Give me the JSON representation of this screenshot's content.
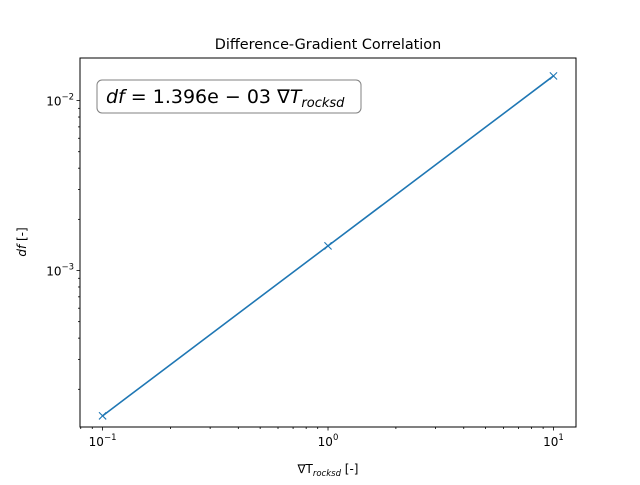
{
  "chart_data": {
    "type": "line",
    "title": "Difference-Gradient Correlation",
    "xlabel": {
      "symbol": "∇T",
      "subscript": "rocksd",
      "unit": " [-]"
    },
    "ylabel": {
      "symbol": "df",
      "unit": " [-]"
    },
    "xscale": "log",
    "yscale": "log",
    "xlim": [
      0.0794,
      12.59
    ],
    "ylim": [
      0.00012,
      0.0178
    ],
    "x_ticks": [
      {
        "base": "10",
        "exp": "−1",
        "value": 0.1
      },
      {
        "base": "10",
        "exp": "0",
        "value": 1
      },
      {
        "base": "10",
        "exp": "1",
        "value": 10
      }
    ],
    "y_ticks": [
      {
        "base": "10",
        "exp": "−3",
        "value": 0.001
      },
      {
        "base": "10",
        "exp": "−2",
        "value": 0.01
      }
    ],
    "grid": false,
    "series": [
      {
        "x": [
          0.1,
          1,
          10
        ],
        "values": [
          0.0001396,
          0.001396,
          0.01396
        ],
        "color": "#1f77b4",
        "marker": "x"
      }
    ],
    "annotation": {
      "lhs": "df",
      "equals": " = ",
      "coef": "1.396e − 03 ",
      "var": "∇T",
      "sub": "rocksd"
    }
  }
}
